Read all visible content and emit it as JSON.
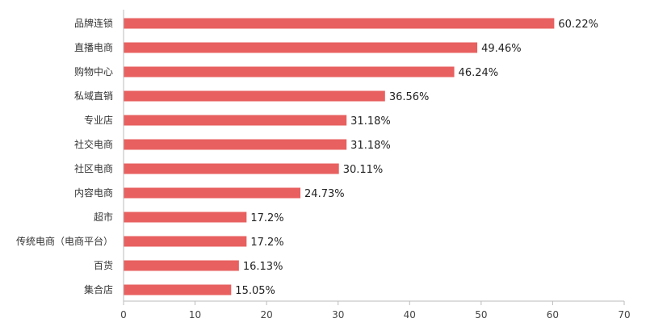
{
  "chart_data": {
    "type": "bar",
    "orientation": "horizontal",
    "categories": [
      "品牌连锁",
      "直播电商",
      "购物中心",
      "私域直销",
      "专业店",
      "社交电商",
      "社区电商",
      "内容电商",
      "超市",
      "传统电商（电商平台）",
      "百货",
      "集合店"
    ],
    "values": [
      60.22,
      49.46,
      46.24,
      36.56,
      31.18,
      31.18,
      30.11,
      24.73,
      17.2,
      17.2,
      16.13,
      15.05
    ],
    "value_labels": [
      "60.22%",
      "49.46%",
      "46.24%",
      "36.56%",
      "31.18%",
      "31.18%",
      "30.11%",
      "24.73%",
      "17.2%",
      "17.2%",
      "16.13%",
      "15.05%"
    ],
    "xlim": [
      0,
      70
    ],
    "x_ticks": [
      0,
      10,
      20,
      30,
      40,
      50,
      60,
      70
    ],
    "bar_color": "#e86060",
    "grid": false,
    "legend": "none"
  }
}
